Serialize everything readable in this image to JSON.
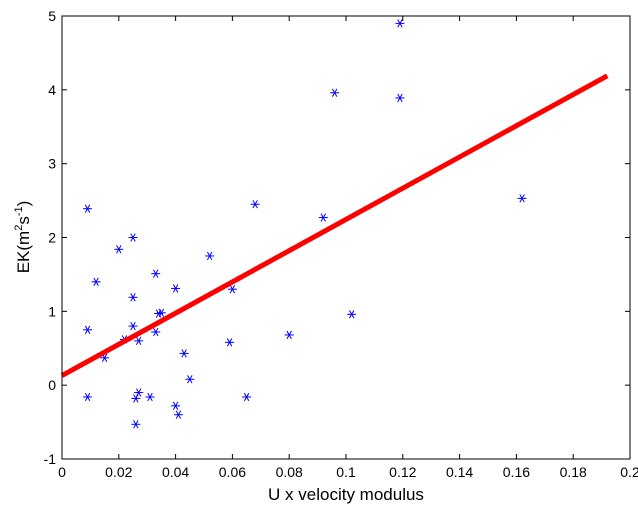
{
  "chart_data": {
    "type": "scatter",
    "title": "",
    "xlabel": "U x velocity modulus",
    "ylabel_parts": [
      "EK(m",
      "2",
      "s",
      "-1",
      ")"
    ],
    "xlim": [
      0,
      0.2
    ],
    "ylim": [
      -1,
      5
    ],
    "grid": false,
    "x_ticks": [
      0,
      0.02,
      0.04,
      0.06,
      0.08,
      0.1,
      0.12,
      0.14,
      0.16,
      0.18,
      0.2
    ],
    "x_tick_labels": [
      "0",
      "0.02",
      "0.04",
      "0.06",
      "0.08",
      "0.1",
      "0.12",
      "0.14",
      "0.16",
      "0.18",
      "0.2"
    ],
    "y_ticks": [
      -1,
      0,
      1,
      2,
      3,
      4,
      5
    ],
    "y_tick_labels": [
      "-1",
      "0",
      "1",
      "2",
      "3",
      "4",
      "5"
    ],
    "series": [
      {
        "marker": "asterisk",
        "color": "#0000ff",
        "points": [
          [
            0.009,
            2.39
          ],
          [
            0.009,
            0.75
          ],
          [
            0.009,
            -0.16
          ],
          [
            0.012,
            1.4
          ],
          [
            0.015,
            0.37
          ],
          [
            0.02,
            1.84
          ],
          [
            0.022,
            0.62
          ],
          [
            0.025,
            2.0
          ],
          [
            0.025,
            1.19
          ],
          [
            0.025,
            0.8
          ],
          [
            0.026,
            -0.53
          ],
          [
            0.026,
            -0.18
          ],
          [
            0.027,
            -0.1
          ],
          [
            0.027,
            0.6
          ],
          [
            0.031,
            -0.16
          ],
          [
            0.033,
            1.51
          ],
          [
            0.033,
            0.72
          ],
          [
            0.034,
            0.97
          ],
          [
            0.035,
            0.98
          ],
          [
            0.04,
            1.31
          ],
          [
            0.04,
            -0.28
          ],
          [
            0.041,
            -0.4
          ],
          [
            0.043,
            0.43
          ],
          [
            0.045,
            0.08
          ],
          [
            0.052,
            1.75
          ],
          [
            0.059,
            0.58
          ],
          [
            0.06,
            1.3
          ],
          [
            0.065,
            -0.16
          ],
          [
            0.068,
            2.45
          ],
          [
            0.08,
            0.68
          ],
          [
            0.092,
            2.27
          ],
          [
            0.096,
            3.96
          ],
          [
            0.102,
            0.96
          ],
          [
            0.119,
            4.9
          ],
          [
            0.119,
            3.89
          ],
          [
            0.162,
            2.53
          ]
        ]
      },
      {
        "type": "line",
        "color": "#ff0000",
        "x": [
          0,
          0.192
        ],
        "y": [
          0.13,
          4.19
        ]
      }
    ]
  }
}
